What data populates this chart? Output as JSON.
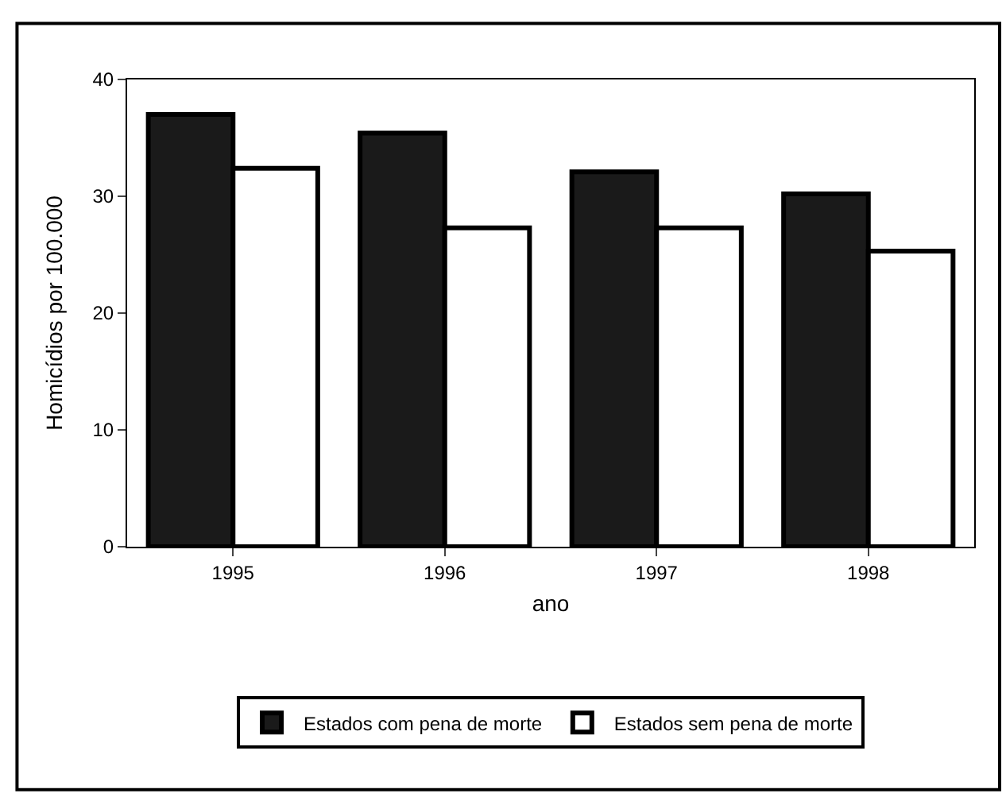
{
  "chart_data": {
    "type": "bar",
    "xlabel": "ano",
    "ylabel": "Homicídios por 100.000",
    "categories": [
      "1995",
      "1996",
      "1997",
      "1998"
    ],
    "series": [
      {
        "name": "Estados com pena de morte",
        "color": "#1a1a1a",
        "values": [
          37,
          35.4,
          32.1,
          30.2
        ]
      },
      {
        "name": "Estados sem pena de morte",
        "color": "#ffffff",
        "values": [
          32.4,
          27.3,
          27.3,
          25.3
        ]
      }
    ],
    "ylim": [
      0,
      40
    ],
    "yticks": [
      0,
      10,
      20,
      30,
      40
    ],
    "legend": "bottom"
  }
}
